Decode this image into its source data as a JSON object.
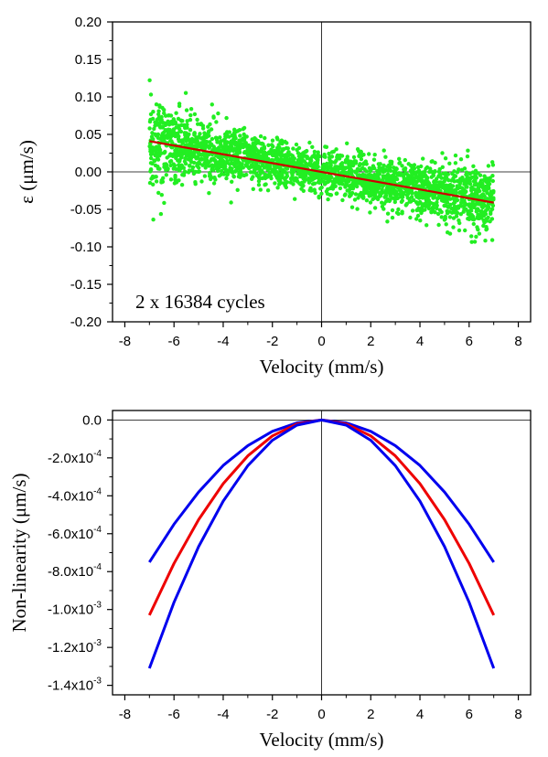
{
  "chart_data": [
    {
      "type": "scatter",
      "xlabel": "Velocity (mm/s)",
      "ylabel": "ε (μm/s)",
      "xlim": [
        -8.5,
        8.5
      ],
      "ylim": [
        -0.2,
        0.2
      ],
      "xticks": [
        -8,
        -6,
        -4,
        -2,
        0,
        2,
        4,
        6,
        8
      ],
      "yticks": [
        "0.20",
        "0.15",
        "0.10",
        "0.05",
        "0.00",
        "-0.05",
        "-0.10",
        "-0.15",
        "-0.20"
      ],
      "ytick_values": [
        0.2,
        0.15,
        0.1,
        0.05,
        0.0,
        -0.05,
        -0.1,
        -0.15,
        -0.2
      ],
      "annotation": "2 x 16384 cycles",
      "grid": false,
      "zero_lines": true,
      "points": {
        "color": "#22ee22",
        "x_range": [
          -7,
          7
        ],
        "trend_at_x_min": 0.04,
        "trend_at_x_max": -0.04,
        "spread_at_x_min": 0.055,
        "spread_at_x_center": 0.025,
        "spread_at_x_max": 0.045
      },
      "fit_line": {
        "color": "#cc0000",
        "x": [
          -7,
          7
        ],
        "y": [
          0.041,
          -0.041
        ]
      }
    },
    {
      "type": "line",
      "xlabel": "Velocity (mm/s)",
      "ylabel": "Non-linearity (μm/s)",
      "xlim": [
        -8.5,
        8.5
      ],
      "ylim": [
        -0.00145,
        5e-05
      ],
      "xticks": [
        -8,
        -6,
        -4,
        -2,
        0,
        2,
        4,
        6,
        8
      ],
      "yticks": [
        {
          "value": 0.0,
          "mantissa": "0.0",
          "exp": ""
        },
        {
          "value": -0.0002,
          "mantissa": "-2.0x10",
          "exp": "-4"
        },
        {
          "value": -0.0004,
          "mantissa": "-4.0x10",
          "exp": "-4"
        },
        {
          "value": -0.0006,
          "mantissa": "-6.0x10",
          "exp": "-4"
        },
        {
          "value": -0.0008,
          "mantissa": "-8.0x10",
          "exp": "-4"
        },
        {
          "value": -0.001,
          "mantissa": "-1.0x10",
          "exp": "-3"
        },
        {
          "value": -0.0012,
          "mantissa": "-1.2x10",
          "exp": "-3"
        },
        {
          "value": -0.0014,
          "mantissa": "-1.4x10",
          "exp": "-3"
        }
      ],
      "grid": false,
      "zero_lines": true,
      "series": [
        {
          "color": "#0000ee",
          "x": [
            -7,
            -6,
            -5,
            -4,
            -3,
            -2,
            -1,
            0,
            1,
            2,
            3,
            4,
            5,
            6,
            7
          ],
          "y": [
            -0.00075,
            -0.00055,
            -0.00038,
            -0.00024,
            -0.000135,
            -6e-05,
            -1.5e-05,
            0.0,
            -1.5e-05,
            -6e-05,
            -0.000135,
            -0.00024,
            -0.00038,
            -0.00055,
            -0.00075
          ]
        },
        {
          "color": "#ee0000",
          "x": [
            -7,
            -6,
            -5,
            -4,
            -3,
            -2,
            -1,
            0,
            1,
            2,
            3,
            4,
            5,
            6,
            7
          ],
          "y": [
            -0.00103,
            -0.000757,
            -0.000526,
            -0.000336,
            -0.000189,
            -8.4e-05,
            -2.1e-05,
            0.0,
            -2.1e-05,
            -8.4e-05,
            -0.000189,
            -0.000336,
            -0.000526,
            -0.000757,
            -0.00103
          ]
        },
        {
          "color": "#0000ee",
          "x": [
            -7,
            -6,
            -5,
            -4,
            -3,
            -2,
            -1,
            0,
            1,
            2,
            3,
            4,
            5,
            6,
            7
          ],
          "y": [
            -0.00131,
            -0.000962,
            -0.000668,
            -0.000428,
            -0.000241,
            -0.000107,
            -2.7e-05,
            0.0,
            -2.7e-05,
            -0.000107,
            -0.000241,
            -0.000428,
            -0.000668,
            -0.000962,
            -0.00131
          ]
        }
      ]
    }
  ]
}
